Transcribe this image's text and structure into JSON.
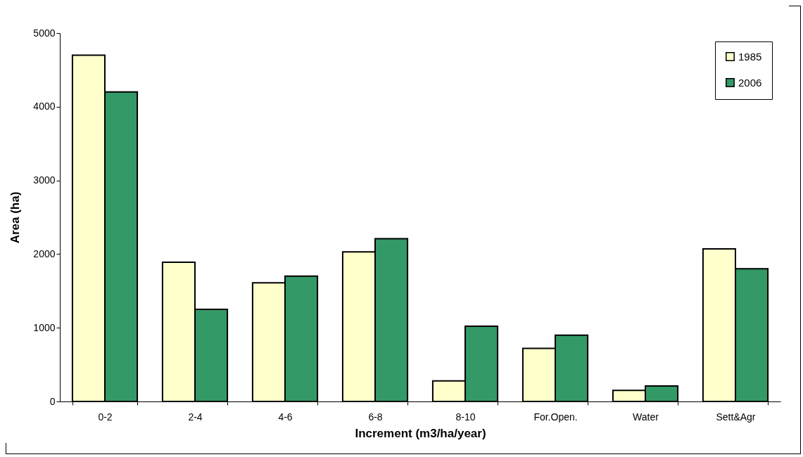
{
  "chart_data": {
    "type": "bar",
    "xlabel": "Increment (m3/ha/year)",
    "ylabel": "Area (ha)",
    "categories": [
      "0-2",
      "2-4",
      "4-6",
      "6-8",
      "8-10",
      "For.Open.",
      "Water",
      "Sett&Agr"
    ],
    "series": [
      {
        "name": "1985",
        "color": "#ffffcc",
        "values": [
          4700,
          1890,
          1610,
          2030,
          280,
          720,
          150,
          2070
        ]
      },
      {
        "name": "2006",
        "color": "#339966",
        "values": [
          4200,
          1250,
          1700,
          2210,
          1020,
          900,
          210,
          1800
        ]
      }
    ],
    "ylim": [
      0,
      5000
    ],
    "yticks": [
      0,
      1000,
      2000,
      3000,
      4000,
      5000
    ],
    "grid": false,
    "legend": "top right"
  }
}
